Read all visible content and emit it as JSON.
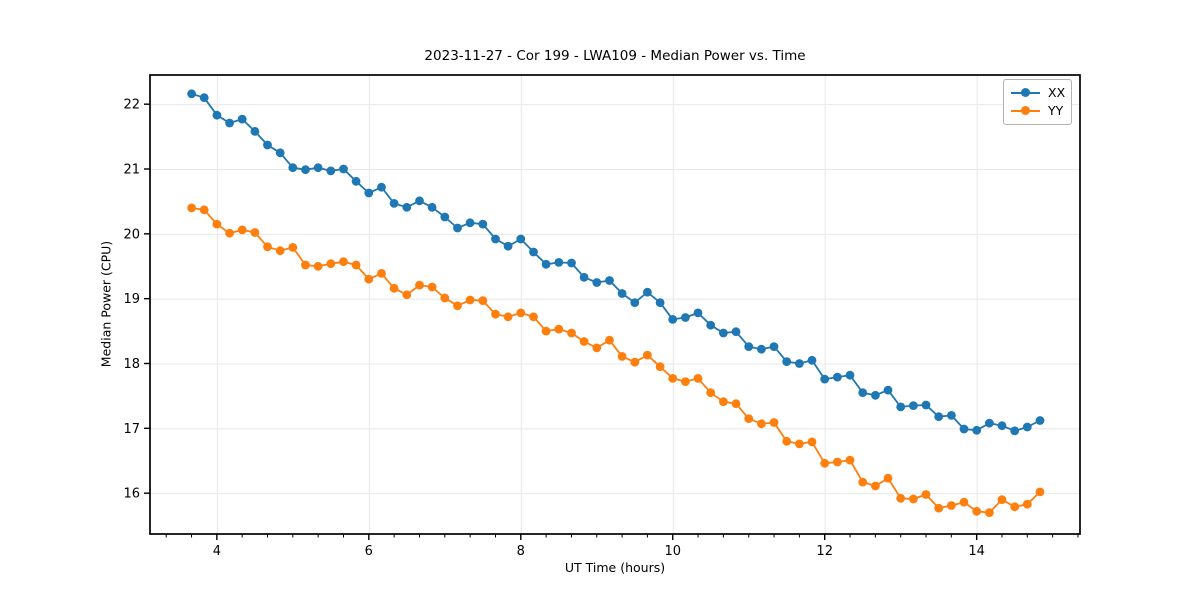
{
  "chart_data": {
    "type": "line",
    "title": "2023-11-27 - Cor 199 - LWA109 - Median Power vs. Time",
    "xlabel": "UT Time (hours)",
    "ylabel": "Median Power (CPU)",
    "xlim": [
      3.12,
      15.36
    ],
    "ylim": [
      15.37,
      22.45
    ],
    "xticks": [
      4,
      6,
      8,
      10,
      12,
      14
    ],
    "yticks": [
      16,
      17,
      18,
      19,
      20,
      21,
      22
    ],
    "x_minor_step": 0.33333,
    "grid": true,
    "legend_position": "upper right",
    "grid_color": "#e8e8e8",
    "spine_color": "#000000",
    "x": [
      3.667,
      3.833,
      4.0,
      4.167,
      4.333,
      4.5,
      4.667,
      4.833,
      5.0,
      5.167,
      5.333,
      5.5,
      5.667,
      5.833,
      6.0,
      6.167,
      6.333,
      6.5,
      6.667,
      6.833,
      7.0,
      7.167,
      7.333,
      7.5,
      7.667,
      7.833,
      8.0,
      8.167,
      8.333,
      8.5,
      8.667,
      8.833,
      9.0,
      9.167,
      9.333,
      9.5,
      9.667,
      9.833,
      10.0,
      10.167,
      10.333,
      10.5,
      10.667,
      10.833,
      11.0,
      11.167,
      11.333,
      11.5,
      11.667,
      11.833,
      12.0,
      12.167,
      12.333,
      12.5,
      12.667,
      12.833,
      13.0,
      13.167,
      13.333,
      13.5,
      13.667,
      13.833,
      14.0,
      14.167,
      14.333,
      14.5,
      14.667,
      14.833
    ],
    "series": [
      {
        "name": "XX",
        "color": "#1f77b4",
        "values": [
          22.16,
          22.1,
          21.83,
          21.71,
          21.77,
          21.58,
          21.37,
          21.25,
          21.02,
          20.99,
          21.02,
          20.97,
          21.0,
          20.81,
          20.63,
          20.72,
          20.47,
          20.41,
          20.51,
          20.41,
          20.26,
          20.09,
          20.17,
          20.15,
          19.92,
          19.81,
          19.92,
          19.72,
          19.53,
          19.56,
          19.55,
          19.33,
          19.25,
          19.28,
          19.08,
          18.94,
          19.1,
          18.94,
          18.68,
          18.71,
          18.78,
          18.59,
          18.47,
          18.49,
          18.26,
          18.22,
          18.26,
          18.03,
          18.0,
          18.05,
          17.76,
          17.79,
          17.82,
          17.55,
          17.51,
          17.59,
          17.33,
          17.35,
          17.36,
          17.18,
          17.2,
          16.99,
          16.97,
          17.08,
          17.04,
          16.96,
          17.02,
          17.12
        ]
      },
      {
        "name": "YY",
        "color": "#ff7f0e",
        "values": [
          20.4,
          20.37,
          20.15,
          20.01,
          20.06,
          20.02,
          19.8,
          19.74,
          19.79,
          19.52,
          19.5,
          19.54,
          19.57,
          19.52,
          19.3,
          19.39,
          19.16,
          19.06,
          19.21,
          19.18,
          19.01,
          18.89,
          18.98,
          18.97,
          18.76,
          18.72,
          18.78,
          18.72,
          18.5,
          18.53,
          18.47,
          18.34,
          18.24,
          18.36,
          18.11,
          18.02,
          18.13,
          17.95,
          17.77,
          17.72,
          17.77,
          17.55,
          17.41,
          17.38,
          17.15,
          17.07,
          17.09,
          16.8,
          16.76,
          16.79,
          16.46,
          16.48,
          16.51,
          16.17,
          16.11,
          16.23,
          15.92,
          15.91,
          15.98,
          15.77,
          15.81,
          15.86,
          15.72,
          15.7,
          15.9,
          15.79,
          15.83,
          16.02
        ]
      }
    ]
  }
}
